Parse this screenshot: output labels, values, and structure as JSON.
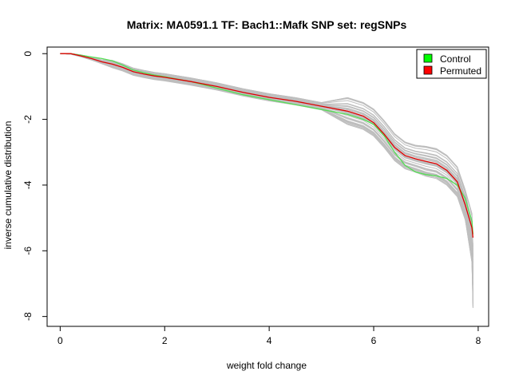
{
  "chart_data": {
    "type": "line",
    "title": "Matrix: MA0591.1 TF: Bach1::Mafk SNP set: regSNPs",
    "xlabel": "weight fold change",
    "ylabel": "inverse cumulative distribution",
    "xlim": [
      -0.25,
      8.2
    ],
    "ylim": [
      -8.3,
      0.2
    ],
    "xticks": [
      0,
      2,
      4,
      6,
      8
    ],
    "yticks": [
      0,
      -2,
      -4,
      -6,
      -8
    ],
    "xtick_labels": [
      "0",
      "2",
      "4",
      "6",
      "8"
    ],
    "ytick_labels": [
      "0",
      "-2",
      "-4",
      "-6",
      "-8"
    ],
    "grid": false,
    "legend": {
      "position": "top-right",
      "items": [
        {
          "label": "Control",
          "color": "#00ff00"
        },
        {
          "label": "Permuted",
          "color": "#ff0000"
        }
      ]
    },
    "series": [
      {
        "name": "Control",
        "color": "#55dd55",
        "x": [
          0,
          0.2,
          0.4,
          0.6,
          0.8,
          1.0,
          1.2,
          1.4,
          1.6,
          1.8,
          2.0,
          2.5,
          3.0,
          3.5,
          4.0,
          4.5,
          5.0,
          5.5,
          5.8,
          6.0,
          6.2,
          6.4,
          6.6,
          6.8,
          7.0,
          7.2,
          7.4,
          7.6,
          7.75,
          7.88,
          7.9
        ],
        "y": [
          0,
          0,
          -0.05,
          -0.1,
          -0.15,
          -0.22,
          -0.35,
          -0.5,
          -0.58,
          -0.65,
          -0.7,
          -0.85,
          -1.05,
          -1.25,
          -1.4,
          -1.55,
          -1.7,
          -1.85,
          -2.0,
          -2.15,
          -2.5,
          -3.0,
          -3.4,
          -3.6,
          -3.68,
          -3.72,
          -3.8,
          -4.0,
          -4.4,
          -5.1,
          -5.5
        ]
      },
      {
        "name": "Permuted",
        "color": "#dd0000",
        "x": [
          0,
          0.2,
          0.4,
          0.6,
          0.8,
          1.0,
          1.2,
          1.4,
          1.6,
          1.8,
          2.0,
          2.5,
          3.0,
          3.5,
          4.0,
          4.5,
          5.0,
          5.5,
          5.8,
          6.0,
          6.2,
          6.4,
          6.6,
          6.8,
          7.0,
          7.2,
          7.4,
          7.6,
          7.75,
          7.88,
          7.9
        ],
        "y": [
          0,
          0,
          -0.07,
          -0.15,
          -0.25,
          -0.32,
          -0.42,
          -0.55,
          -0.62,
          -0.68,
          -0.72,
          -0.85,
          -1.0,
          -1.18,
          -1.33,
          -1.45,
          -1.6,
          -1.75,
          -1.9,
          -2.1,
          -2.45,
          -2.85,
          -3.1,
          -3.2,
          -3.28,
          -3.35,
          -3.55,
          -3.9,
          -4.6,
          -5.3,
          -5.6
        ]
      }
    ],
    "background_series": {
      "name": "",
      "color": "#bebebe",
      "count": 40,
      "spread_y": 0.45,
      "tail_min_y": -7.9
    }
  }
}
